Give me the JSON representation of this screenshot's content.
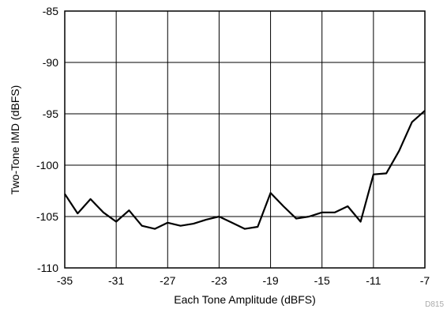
{
  "chart_data": {
    "type": "line",
    "xlabel": "Each Tone Amplitude (dBFS)",
    "ylabel": "Two-Tone IMD (dBFS)",
    "xlim": [
      -35,
      -7
    ],
    "ylim": [
      -110,
      -85
    ],
    "x_ticks": [
      -35,
      -31,
      -27,
      -23,
      -19,
      -15,
      -11,
      -7
    ],
    "x_tick_labels": [
      "-35",
      "-31",
      "-27",
      "-23",
      "-19",
      "-15",
      "-11",
      "-7"
    ],
    "y_ticks": [
      -85,
      -90,
      -95,
      -100,
      -105,
      -110
    ],
    "y_tick_labels": [
      "-85",
      "-90",
      "-95",
      "-100",
      "-105",
      "-110"
    ],
    "grid": true,
    "series": [
      {
        "color": "#000000",
        "x": [
          -35,
          -34,
          -33,
          -32,
          -31,
          -30,
          -29,
          -28,
          -27,
          -26,
          -25,
          -24,
          -23,
          -22,
          -21,
          -20,
          -19,
          -18,
          -17,
          -16,
          -15,
          -14,
          -13,
          -12,
          -11,
          -10,
          -9,
          -8,
          -7
        ],
        "y": [
          -102.8,
          -104.7,
          -103.3,
          -104.6,
          -105.5,
          -104.4,
          -105.9,
          -106.2,
          -105.6,
          -105.9,
          -105.7,
          -105.3,
          -105.0,
          -105.6,
          -106.2,
          -106.0,
          -102.7,
          -104.0,
          -105.2,
          -105.0,
          -104.6,
          -104.6,
          -104.0,
          -105.5,
          -100.9,
          -100.8,
          -98.6,
          -95.8,
          -94.7
        ]
      }
    ]
  },
  "figure_id": "D815"
}
